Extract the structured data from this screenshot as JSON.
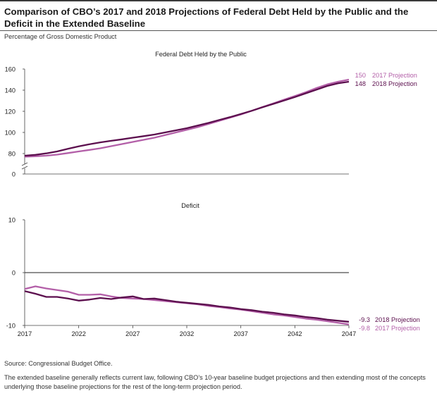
{
  "title": "Comparison of CBO’s 2017 and 2018 Projections of Federal Debt Held by the Public and the Deficit in the Extended Baseline",
  "subtitle": "Percentage of Gross Domestic Product",
  "source": "Source: Congressional Budget Office.",
  "notes": "The extended baseline generally reflects current law, following CBO’s 10-year baseline budget projections and then extending most of the concepts underlying those baseline projections for the rest of the long-term projection period.",
  "colors": {
    "proj2017": "#b35fa8",
    "proj2018": "#5c0f4e",
    "axis": "#444444",
    "zero_line": "#222222"
  },
  "chart_data": [
    {
      "type": "line",
      "title": "Federal Debt Held by the Public",
      "x": [
        2017,
        2018,
        2019,
        2020,
        2021,
        2022,
        2023,
        2024,
        2025,
        2026,
        2027,
        2028,
        2029,
        2030,
        2031,
        2032,
        2033,
        2034,
        2035,
        2036,
        2037,
        2038,
        2039,
        2040,
        2041,
        2042,
        2043,
        2044,
        2045,
        2046,
        2047
      ],
      "yticks": [
        0,
        80,
        100,
        120,
        140,
        160
      ],
      "ylim": [
        0,
        160
      ],
      "axis_break": [
        0,
        75
      ],
      "series": [
        {
          "name": "2017 Projection",
          "end_value": "150",
          "values": [
            77,
            77.4,
            78,
            79,
            80.5,
            82,
            83.5,
            85,
            87,
            89,
            91,
            93,
            95,
            97.5,
            100,
            102.5,
            105,
            108,
            111,
            114,
            117,
            120.5,
            124,
            127.5,
            131,
            134.5,
            138,
            142,
            145.5,
            148,
            150
          ]
        },
        {
          "name": "2018 Projection",
          "end_value": "148",
          "values": [
            78,
            78.8,
            80.2,
            82,
            84.5,
            86.8,
            88.8,
            90.6,
            92.1,
            93.5,
            95,
            96.5,
            98,
            100,
            102,
            104,
            106.5,
            109,
            111.8,
            114.5,
            117.5,
            120.5,
            123.8,
            127,
            130.2,
            133.5,
            137,
            140.5,
            144,
            146.5,
            148
          ]
        }
      ]
    },
    {
      "type": "line",
      "title": "Deficit",
      "x": [
        2017,
        2018,
        2019,
        2020,
        2021,
        2022,
        2023,
        2024,
        2025,
        2026,
        2027,
        2028,
        2029,
        2030,
        2031,
        2032,
        2033,
        2034,
        2035,
        2036,
        2037,
        2038,
        2039,
        2040,
        2041,
        2042,
        2043,
        2044,
        2045,
        2046,
        2047
      ],
      "xticks": [
        2017,
        2022,
        2027,
        2032,
        2037,
        2042,
        2047
      ],
      "yticks": [
        -10,
        0,
        10
      ],
      "ylim": [
        -10,
        10
      ],
      "series": [
        {
          "name": "2018 Projection",
          "end_value": "-9.3",
          "values": [
            -3.5,
            -4.0,
            -4.6,
            -4.6,
            -4.9,
            -5.3,
            -5.1,
            -4.8,
            -5.0,
            -4.7,
            -4.5,
            -5.0,
            -4.9,
            -5.2,
            -5.5,
            -5.7,
            -5.9,
            -6.1,
            -6.4,
            -6.6,
            -6.9,
            -7.1,
            -7.4,
            -7.6,
            -7.9,
            -8.1,
            -8.4,
            -8.6,
            -8.9,
            -9.1,
            -9.3
          ]
        },
        {
          "name": "2017 Projection",
          "end_value": "-9.8",
          "values": [
            -3.1,
            -2.6,
            -3.0,
            -3.3,
            -3.6,
            -4.2,
            -4.2,
            -4.1,
            -4.5,
            -4.8,
            -4.9,
            -5.0,
            -5.2,
            -5.4,
            -5.6,
            -5.8,
            -6.0,
            -6.3,
            -6.5,
            -6.8,
            -7.0,
            -7.3,
            -7.6,
            -7.9,
            -8.1,
            -8.4,
            -8.7,
            -8.9,
            -9.2,
            -9.5,
            -9.8
          ]
        }
      ]
    }
  ]
}
